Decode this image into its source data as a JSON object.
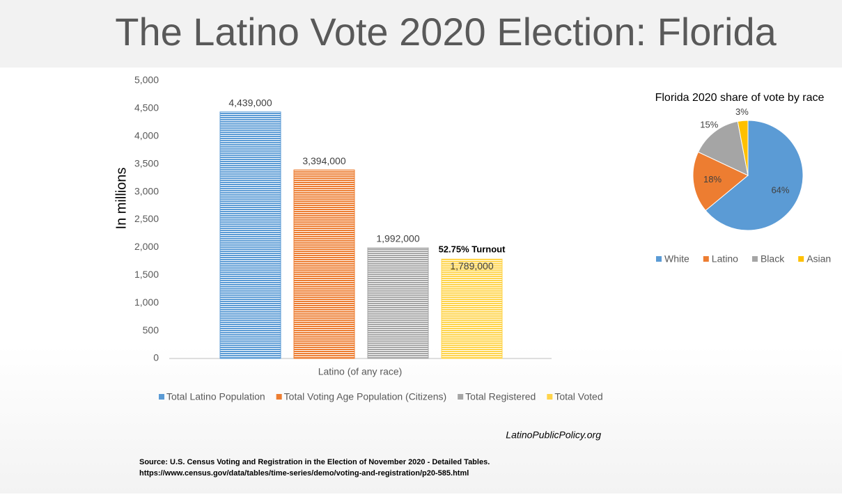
{
  "title": "The Latino Vote 2020 Election: Florida",
  "chart_data": [
    {
      "type": "bar",
      "y_label": "In millions",
      "categories": [
        "Latino (of any race)"
      ],
      "series": [
        {
          "name": "Total Latino Population",
          "color": "#5b9bd5",
          "values": [
            4439
          ],
          "value_labels": [
            "4,439,000"
          ]
        },
        {
          "name": "Total Voting Age Population (Citizens)",
          "color": "#ed7d31",
          "values": [
            3394
          ],
          "value_labels": [
            "3,394,000"
          ]
        },
        {
          "name": "Total Registered",
          "color": "#a5a5a5",
          "values": [
            1992
          ],
          "value_labels": [
            "1,992,000"
          ]
        },
        {
          "name": "Total Voted",
          "color": "#ffd44a",
          "values": [
            1789
          ],
          "value_labels": [
            "1,789,000"
          ]
        }
      ],
      "annotation": "52.75% Turnout",
      "ylim": [
        0,
        5000
      ],
      "yticks": [
        0,
        500,
        {
          "value": 1000,
          "label": "1,000"
        },
        {
          "value": 1500,
          "label": "1,500"
        },
        {
          "value": 2000,
          "label": "2,000"
        },
        {
          "value": 2500,
          "label": "2,500"
        },
        {
          "value": 3000,
          "label": "3,000"
        },
        {
          "value": 3500,
          "label": "3,500"
        },
        {
          "value": 4000,
          "label": "4,000"
        },
        {
          "value": 4500,
          "label": "4,500"
        },
        {
          "value": 5000,
          "label": "5,000"
        }
      ],
      "legend": "bottom"
    },
    {
      "type": "pie",
      "title": "Florida 2020 share of vote by race",
      "categories": [
        "White",
        "Latino",
        "Black",
        "Asian"
      ],
      "values": [
        64,
        18,
        15,
        3
      ],
      "value_labels": [
        "64%",
        "18%",
        "15%",
        "3%"
      ],
      "colors": [
        "#5b9bd5",
        "#ed7d31",
        "#a5a5a5",
        "#ffc000"
      ],
      "legend": "bottom"
    }
  ],
  "website": "LatinoPublicPolicy.org",
  "source": [
    "Source: U.S. Census  Voting and Registration in the Election of November 2020 - Detailed Tables.",
    "https://www.census.gov/data/tables/time-series/demo/voting-and-registration/p20-585.html"
  ]
}
